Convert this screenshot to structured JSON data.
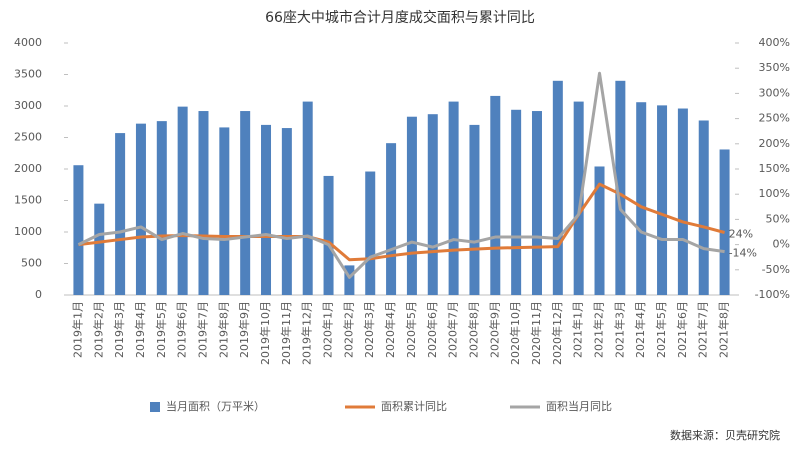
{
  "chart_data": {
    "type": "combo",
    "title": "66座大中城市合计月度成交面积与累计同比",
    "categories": [
      "2019年1月",
      "2019年2月",
      "2019年3月",
      "2019年4月",
      "2019年5月",
      "2019年6月",
      "2019年7月",
      "2019年8月",
      "2019年9月",
      "2019年10月",
      "2019年11月",
      "2019年12月",
      "2020年1月",
      "2020年2月",
      "2020年3月",
      "2020年4月",
      "2020年5月",
      "2020年6月",
      "2020年7月",
      "2020年8月",
      "2020年9月",
      "2020年10月",
      "2020年11月",
      "2020年12月",
      "2021年1月",
      "2021年2月",
      "2021年3月",
      "2021年4月",
      "2021年5月",
      "2021年6月",
      "2021年7月",
      "2021年8月"
    ],
    "series": [
      {
        "name": "当月面积（万平米）",
        "type": "bar",
        "color": "#4f81bd",
        "values": [
          2060,
          1450,
          2570,
          2720,
          2760,
          2990,
          2920,
          2660,
          2920,
          2700,
          2650,
          3070,
          1890,
          470,
          1960,
          2410,
          2830,
          2870,
          3070,
          2700,
          3160,
          2940,
          2920,
          3400,
          3070,
          2040,
          3400,
          3060,
          3010,
          2960,
          2770,
          2310
        ]
      },
      {
        "name": "面积累计同比",
        "type": "line",
        "axis": "y2",
        "color": "#e07b39",
        "values": [
          0,
          5,
          10,
          15,
          17,
          18,
          17,
          16,
          16,
          16,
          16,
          16,
          5,
          -30,
          -28,
          -22,
          -17,
          -14,
          -11,
          -9,
          -7,
          -6,
          -5,
          -4,
          60,
          120,
          100,
          75,
          60,
          45,
          35,
          24
        ],
        "value_labels": [
          null,
          null,
          null,
          null,
          null,
          null,
          null,
          null,
          null,
          null,
          null,
          null,
          null,
          null,
          null,
          null,
          null,
          null,
          null,
          null,
          null,
          null,
          null,
          null,
          null,
          null,
          null,
          null,
          null,
          null,
          null,
          "24%"
        ]
      },
      {
        "name": "面积当月同比",
        "type": "line",
        "axis": "y2",
        "color": "#a5a5a5",
        "values": [
          0,
          20,
          25,
          35,
          10,
          22,
          12,
          10,
          15,
          20,
          12,
          17,
          0,
          -65,
          -25,
          -10,
          5,
          -5,
          10,
          5,
          15,
          15,
          15,
          12,
          60,
          340,
          70,
          25,
          10,
          10,
          -8,
          -14
        ],
        "value_labels": [
          null,
          null,
          null,
          null,
          null,
          null,
          null,
          null,
          null,
          null,
          null,
          null,
          null,
          null,
          null,
          null,
          null,
          null,
          null,
          null,
          null,
          null,
          null,
          null,
          null,
          null,
          null,
          null,
          null,
          null,
          null,
          "-14%"
        ]
      }
    ],
    "ylim": [
      0,
      4000
    ],
    "yticks": [
      0,
      500,
      1000,
      1500,
      2000,
      2500,
      3000,
      3500,
      4000
    ],
    "y2lim": [
      -100,
      400
    ],
    "y2ticks": [
      {
        "value": -100,
        "label": "-100%"
      },
      {
        "value": -50,
        "label": "-50%"
      },
      {
        "value": 0,
        "label": "0%"
      },
      {
        "value": 50,
        "label": "50%"
      },
      {
        "value": 100,
        "label": "100%"
      },
      {
        "value": 150,
        "label": "150%"
      },
      {
        "value": 200,
        "label": "200%"
      },
      {
        "value": 250,
        "label": "250%"
      },
      {
        "value": 300,
        "label": "300%"
      },
      {
        "value": 350,
        "label": "350%"
      },
      {
        "value": 400,
        "label": "400%"
      }
    ],
    "source": "数据来源：贝壳研究院"
  }
}
